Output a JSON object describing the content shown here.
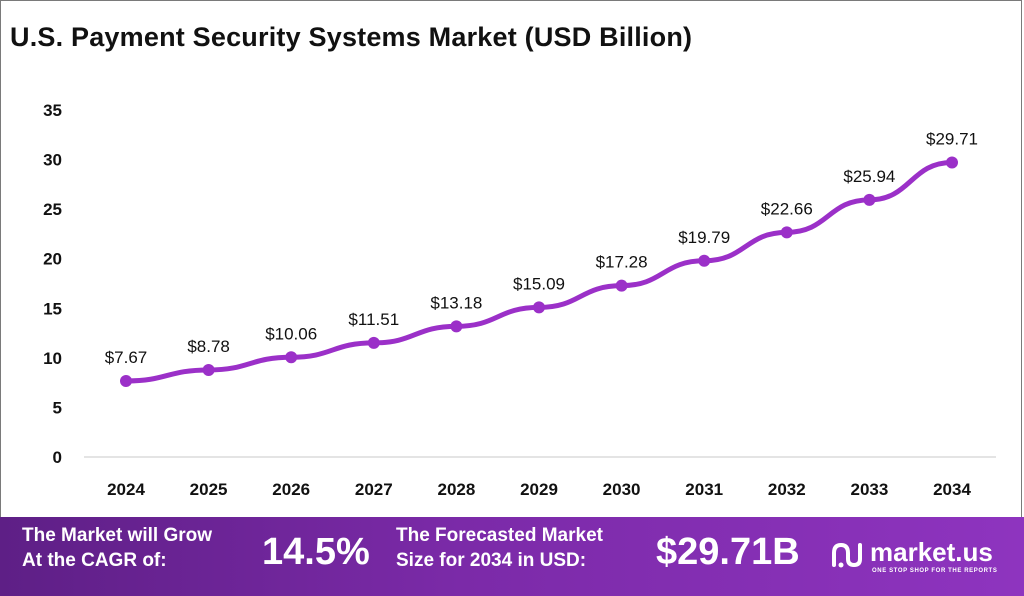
{
  "title": "U.S. Payment Security Systems Market (USD Billion)",
  "chart_data": {
    "type": "line",
    "title": "U.S. Payment Security Systems Market (USD Billion)",
    "categories": [
      "2024",
      "2025",
      "2026",
      "2027",
      "2028",
      "2029",
      "2030",
      "2031",
      "2032",
      "2033",
      "2034"
    ],
    "values": [
      7.67,
      8.78,
      10.06,
      11.51,
      13.18,
      15.09,
      17.28,
      19.79,
      22.66,
      25.94,
      29.71
    ],
    "data_labels": [
      "$7.67",
      "$8.78",
      "$10.06",
      "$11.51",
      "$13.18",
      "$15.09",
      "$17.28",
      "$19.79",
      "$22.66",
      "$25.94",
      "$29.71"
    ],
    "yticks": [
      0,
      5,
      10,
      15,
      20,
      25,
      30,
      35
    ],
    "ylim": [
      0,
      35
    ],
    "grid": false,
    "legend": "none",
    "line_color": "#9b30c8"
  },
  "footer": {
    "cagr_label_line1": "The Market will Grow",
    "cagr_label_line2": "At the CAGR of:",
    "cagr_value": "14.5%",
    "forecast_label_line1": "The Forecasted Market",
    "forecast_label_line2": "Size for 2034 in USD:",
    "forecast_value": "$29.71B",
    "logo_text": "market.us",
    "logo_tagline": "ONE STOP SHOP FOR THE REPORTS"
  }
}
